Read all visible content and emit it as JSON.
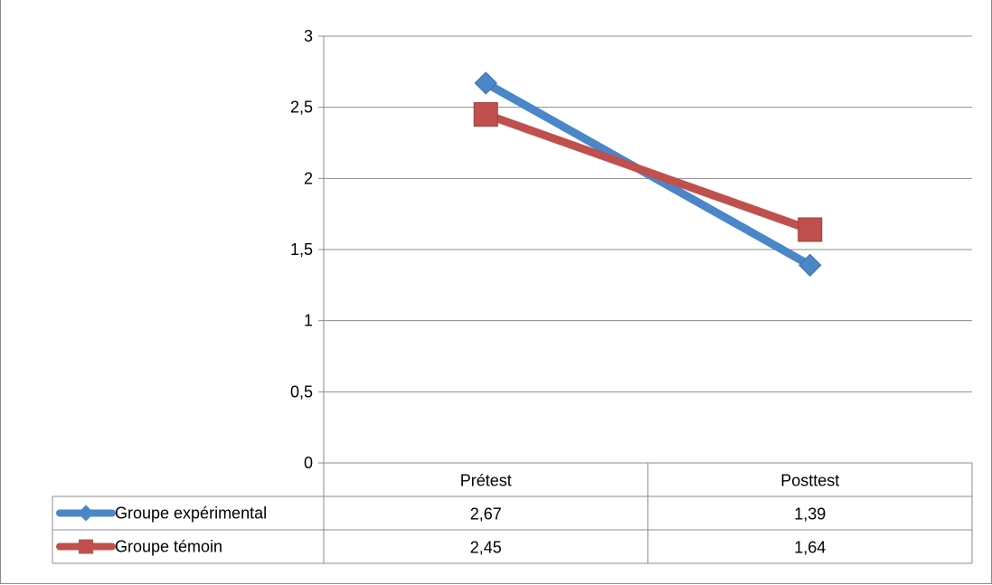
{
  "chart_data": {
    "type": "line",
    "categories": [
      "Prétest",
      "Posttest"
    ],
    "series": [
      {
        "name": "Groupe expérimental",
        "values": [
          2.67,
          1.39
        ],
        "color": "#4a86c8",
        "marker": "diamond",
        "labels": [
          "2,67",
          "1,39"
        ]
      },
      {
        "name": "Groupe témoin",
        "values": [
          2.45,
          1.64
        ],
        "color": "#c0504d",
        "marker": "square",
        "labels": [
          "2,45",
          "1,64"
        ]
      }
    ],
    "yticks": [
      "0",
      "0,5",
      "1",
      "1,5",
      "2",
      "2,5",
      "3"
    ],
    "ylim": [
      0,
      3
    ],
    "grid": true,
    "legend": "data-table",
    "title": "",
    "xlabel": "",
    "ylabel": ""
  }
}
